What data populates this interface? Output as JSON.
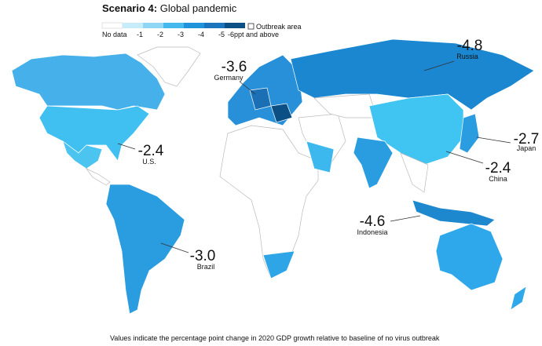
{
  "title": {
    "bold": "Scenario 4:",
    "rest": "Global pandemic"
  },
  "legend": {
    "items": [
      "No data",
      "-1",
      "-2",
      "-3",
      "-4",
      "-5",
      "-6ppt and above"
    ],
    "outbreak": "Outbreak area"
  },
  "callouts": [
    {
      "value": "-4.8",
      "country": "Russia"
    },
    {
      "value": "-3.6",
      "country": "Germany"
    },
    {
      "value": "-2.4",
      "country": "U.S."
    },
    {
      "value": "-2.7",
      "country": "Japan"
    },
    {
      "value": "-2.4",
      "country": "China"
    },
    {
      "value": "-4.6",
      "country": "Indonesia"
    },
    {
      "value": "-3.0",
      "country": "Brazil"
    }
  ],
  "footnote": "Values indicate the percentage point change in 2020 GDP growth relative to baseline of no virus outbreak"
}
